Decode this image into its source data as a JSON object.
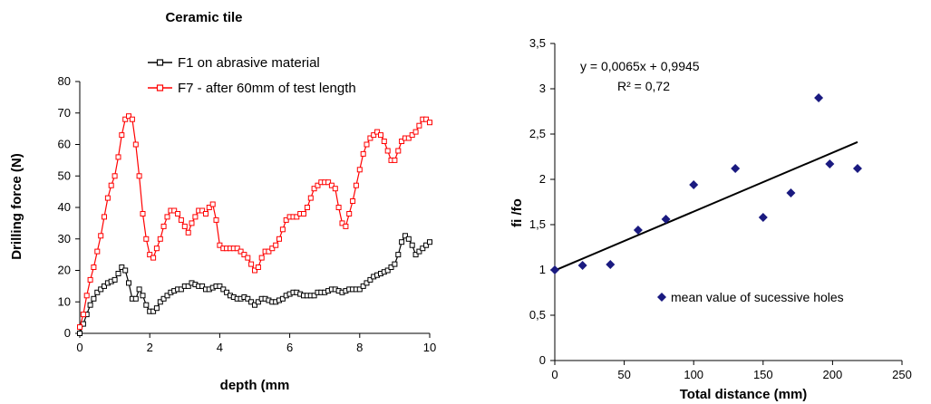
{
  "chart_data": [
    {
      "type": "line",
      "title": "Ceramic tile",
      "xlabel": "depth (mm",
      "ylabel": "Drilling force (N)",
      "xlim": [
        0,
        10
      ],
      "ylim": [
        0,
        80
      ],
      "xticks": [
        "0",
        "2",
        "4",
        "6",
        "8",
        "10"
      ],
      "yticks": [
        "0",
        "10",
        "20",
        "30",
        "40",
        "50",
        "60",
        "70",
        "80"
      ],
      "grid": false,
      "legend": "top",
      "series": [
        {
          "name": "F1 on abrasive material",
          "color": "#000000",
          "x": [
            0,
            0.1,
            0.2,
            0.3,
            0.4,
            0.5,
            0.6,
            0.7,
            0.8,
            0.9,
            1.0,
            1.1,
            1.2,
            1.3,
            1.4,
            1.5,
            1.6,
            1.7,
            1.8,
            1.9,
            2.0,
            2.1,
            2.2,
            2.3,
            2.4,
            2.5,
            2.6,
            2.7,
            2.8,
            2.9,
            3.0,
            3.1,
            3.2,
            3.3,
            3.4,
            3.5,
            3.6,
            3.7,
            3.8,
            3.9,
            4.0,
            4.1,
            4.2,
            4.3,
            4.4,
            4.5,
            4.6,
            4.7,
            4.8,
            4.9,
            5.0,
            5.1,
            5.2,
            5.3,
            5.4,
            5.5,
            5.6,
            5.7,
            5.8,
            5.9,
            6.0,
            6.1,
            6.2,
            6.3,
            6.4,
            6.5,
            6.6,
            6.7,
            6.8,
            6.9,
            7.0,
            7.1,
            7.2,
            7.3,
            7.4,
            7.5,
            7.6,
            7.7,
            7.8,
            7.9,
            8.0,
            8.1,
            8.2,
            8.3,
            8.4,
            8.5,
            8.6,
            8.7,
            8.8,
            8.9,
            9.0,
            9.1,
            9.2,
            9.3,
            9.4,
            9.5,
            9.6,
            9.7,
            9.8,
            9.9,
            10.0
          ],
          "values": [
            0,
            3,
            6,
            9,
            11,
            13,
            14,
            15,
            16,
            16.5,
            17,
            19,
            21,
            20,
            16,
            11,
            11,
            14,
            12,
            9,
            7,
            7,
            8,
            10,
            11,
            12,
            13,
            13.5,
            14,
            14,
            15,
            15,
            16,
            15.5,
            15,
            15,
            14,
            14,
            14.5,
            15,
            15,
            14,
            13,
            12,
            11.5,
            11,
            11,
            11.5,
            11,
            10,
            9,
            10,
            11,
            11,
            10.5,
            10,
            10,
            10.5,
            11,
            12,
            12.5,
            13,
            13,
            12.5,
            12,
            12,
            12,
            12,
            13,
            13,
            13,
            13.5,
            14,
            14,
            13.5,
            13,
            13.5,
            14,
            14,
            14,
            14,
            15,
            16,
            17,
            18,
            18.5,
            19,
            19.5,
            20,
            21,
            22,
            25,
            29,
            31,
            30,
            28,
            25,
            26,
            27,
            28,
            29
          ]
        },
        {
          "name": "F7 - after 60mm of test length",
          "color": "#ff0000",
          "x": [
            0,
            0.1,
            0.2,
            0.3,
            0.4,
            0.5,
            0.6,
            0.7,
            0.8,
            0.9,
            1.0,
            1.1,
            1.2,
            1.3,
            1.4,
            1.5,
            1.6,
            1.7,
            1.8,
            1.9,
            2.0,
            2.1,
            2.2,
            2.3,
            2.4,
            2.5,
            2.6,
            2.7,
            2.8,
            2.9,
            3.0,
            3.1,
            3.2,
            3.3,
            3.4,
            3.5,
            3.6,
            3.7,
            3.8,
            3.9,
            4.0,
            4.1,
            4.2,
            4.3,
            4.4,
            4.5,
            4.6,
            4.7,
            4.8,
            4.9,
            5.0,
            5.1,
            5.2,
            5.3,
            5.4,
            5.5,
            5.6,
            5.7,
            5.8,
            5.9,
            6.0,
            6.1,
            6.2,
            6.3,
            6.4,
            6.5,
            6.6,
            6.7,
            6.8,
            6.9,
            7.0,
            7.1,
            7.2,
            7.3,
            7.4,
            7.5,
            7.6,
            7.7,
            7.8,
            7.9,
            8.0,
            8.1,
            8.2,
            8.3,
            8.4,
            8.5,
            8.6,
            8.7,
            8.8,
            8.9,
            9.0,
            9.1,
            9.2,
            9.3,
            9.4,
            9.5,
            9.6,
            9.7,
            9.8,
            9.9,
            10.0
          ],
          "values": [
            2,
            6,
            12,
            17,
            21,
            26,
            31,
            37,
            43,
            47,
            50,
            56,
            63,
            68,
            69,
            68,
            60,
            50,
            38,
            30,
            25,
            24,
            27,
            30,
            34,
            37,
            39,
            39,
            38,
            36,
            34,
            32,
            35,
            37,
            39,
            39,
            38,
            40,
            41,
            36,
            28,
            27,
            27,
            27,
            27,
            27,
            26,
            25,
            24,
            22,
            20,
            21,
            24,
            26,
            26,
            27,
            28,
            30,
            33,
            36,
            37,
            37,
            37,
            38,
            38,
            40,
            43,
            46,
            47,
            48,
            48,
            48,
            47,
            46,
            40,
            35,
            34,
            38,
            42,
            47,
            52,
            57,
            60,
            62,
            63,
            64,
            63,
            61,
            58,
            55,
            55,
            58,
            61,
            62,
            62,
            63,
            64,
            66,
            68,
            68,
            67
          ]
        }
      ]
    },
    {
      "type": "scatter",
      "title": "",
      "xlabel": "Total distance (mm)",
      "ylabel": "fi /fo",
      "xlim": [
        0,
        250
      ],
      "ylim": [
        0,
        3.5
      ],
      "xticks": [
        "0",
        "50",
        "100",
        "150",
        "200",
        "250"
      ],
      "yticks": [
        "0",
        "0,5",
        "1",
        "1,5",
        "2",
        "2,5",
        "3",
        "3,5"
      ],
      "grid": false,
      "legend": "bottom-right",
      "series": [
        {
          "name": "mean value of sucessive holes",
          "color": "#1a1a80",
          "x": [
            0,
            20,
            40,
            60,
            80,
            100,
            130,
            150,
            170,
            190,
            198,
            218
          ],
          "values": [
            1.0,
            1.05,
            1.06,
            1.44,
            1.56,
            1.94,
            2.12,
            1.58,
            1.85,
            2.9,
            2.17,
            2.12
          ]
        }
      ],
      "trendline": {
        "slope": 0.0065,
        "intercept": 0.9945,
        "x_range": [
          0,
          218
        ],
        "color": "#000000",
        "equation": "y = 0,0065x + 0,9945",
        "r_squared": "R² = 0,72"
      }
    }
  ]
}
